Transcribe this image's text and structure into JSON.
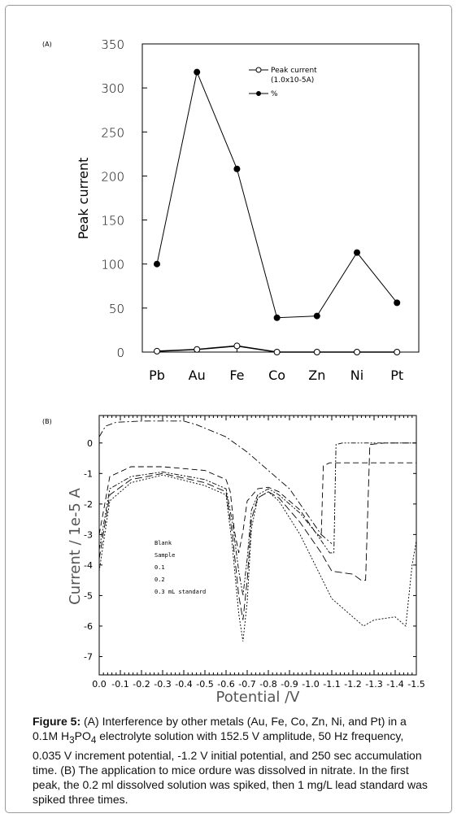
{
  "caption": {
    "label": "Figure 5:",
    "text_a": " (A) Interference by other metals (Au, Fe, Co, Zn, Ni, and Pt) in a 0.1M H",
    "sub1": "3",
    "mid": "PO",
    "sub2": "4",
    "text_b": " electrolyte solution with 152.5 V amplitude, 50 Hz frequency, 0.035 V increment potential, -1.2 V initial potential, and 250 sec accumulation time. (B) The application to mice ordure was dissolved in nitrate. In the first peak, the 0.2 ml dissolved solution was spiked, then 1 mg/L lead standard was spiked three times."
  },
  "chart_data": [
    {
      "panel": "(A)",
      "type": "line",
      "ylabel": "Peak current",
      "xlabel": "",
      "categories": [
        "Pb",
        "Au",
        "Fe",
        "Co",
        "Zn",
        "Ni",
        "Pt"
      ],
      "ylim": [
        0,
        350
      ],
      "yticks": [
        "0",
        "50",
        "100",
        "150",
        "200",
        "250",
        "300",
        "350"
      ],
      "legend_position": "top-right",
      "series": [
        {
          "name": "Peak current (1.0x10-5A)",
          "marker": "open-circle",
          "values": [
            1,
            3,
            7,
            0,
            0,
            0,
            0
          ]
        },
        {
          "name": "%",
          "marker": "filled-circle",
          "values": [
            100,
            318,
            208,
            39,
            41,
            113,
            56
          ]
        }
      ]
    },
    {
      "panel": "(B)",
      "type": "line",
      "xlabel": "Potential /V",
      "ylabel": "Current / 1e-5 A",
      "xlim": [
        0.0,
        -1.5
      ],
      "ylim": [
        -7.6,
        0.9
      ],
      "xticks": [
        "0.0",
        "-0.1",
        "-0.2",
        "-0.3",
        "-0.4",
        "-0.5",
        "-0.6",
        "-0.7",
        "-0.8",
        "-0.9",
        "-1.0",
        "-1.1",
        "-1.2",
        "-1.3",
        "-1.4",
        "-1.5"
      ],
      "yticks": [
        "0",
        "-1",
        "-2",
        "-3",
        "-4",
        "-5",
        "-6",
        "-7"
      ],
      "legend_position": "center-left",
      "series": [
        {
          "name": "Blank",
          "dash": "8,3,2,3",
          "x": [
            0.0,
            -0.03,
            -0.08,
            -0.2,
            -0.4,
            -0.46,
            -0.6,
            -0.7,
            -0.75,
            -0.8,
            -0.9,
            -1.0,
            -1.05,
            -1.1
          ],
          "y": [
            0.2,
            0.55,
            0.68,
            0.72,
            0.72,
            0.6,
            0.2,
            -0.3,
            -0.6,
            -0.9,
            -1.5,
            -2.5,
            -3.0,
            -3.3
          ]
        },
        {
          "name": "Sample",
          "dash": "7,4",
          "x": [
            0.0,
            -0.05,
            -0.15,
            -0.3,
            -0.5,
            -0.6,
            -0.62,
            -0.64,
            -0.66,
            -0.68,
            -0.7,
            -0.75,
            -0.8,
            -0.85,
            -0.95,
            -1.02,
            -1.05,
            -1.06,
            -1.09,
            -1.12,
            -1.2,
            -1.3,
            -1.4,
            -1.5
          ],
          "y": [
            -3.0,
            -1.1,
            -0.78,
            -0.78,
            -0.9,
            -1.2,
            -1.6,
            -2.9,
            -3.6,
            -2.9,
            -1.9,
            -1.5,
            -1.45,
            -1.6,
            -2.2,
            -2.9,
            -3.1,
            -0.75,
            -0.65,
            -0.65,
            -0.65,
            -0.65,
            -0.65,
            -0.65
          ]
        },
        {
          "name": "0.1",
          "dash": "6,2,2,2,2,2",
          "x": [
            0.0,
            -0.05,
            -0.15,
            -0.3,
            -0.5,
            -0.6,
            -0.63,
            -0.66,
            -0.68,
            -0.7,
            -0.72,
            -0.75,
            -0.8,
            -0.85,
            -0.95,
            -1.02,
            -1.06,
            -1.09,
            -1.11,
            -1.12,
            -1.15,
            -1.3,
            -1.5
          ],
          "y": [
            -3.5,
            -1.5,
            -1.1,
            -0.95,
            -1.2,
            -1.5,
            -2.6,
            -4.2,
            -5.0,
            -3.8,
            -2.2,
            -1.7,
            -1.5,
            -1.7,
            -2.3,
            -2.9,
            -3.3,
            -3.6,
            -3.6,
            -0.05,
            -0.0,
            -0.0,
            -0.0
          ]
        },
        {
          "name": "0.2",
          "dash": "9,4",
          "x": [
            0.0,
            -0.05,
            -0.15,
            -0.3,
            -0.5,
            -0.6,
            -0.63,
            -0.66,
            -0.68,
            -0.7,
            -0.72,
            -0.75,
            -0.8,
            -0.85,
            -0.95,
            -1.05,
            -1.1,
            -1.2,
            -1.24,
            -1.26,
            -1.28,
            -1.35,
            -1.5
          ],
          "y": [
            -3.8,
            -1.7,
            -1.2,
            -1.0,
            -1.3,
            -1.6,
            -3.0,
            -5.0,
            -5.8,
            -4.5,
            -2.5,
            -1.8,
            -1.6,
            -1.8,
            -2.6,
            -3.6,
            -4.2,
            -4.3,
            -4.5,
            -4.5,
            -0.05,
            0.0,
            0.0
          ]
        },
        {
          "name": "0.3 mL standard",
          "dash": "2,2",
          "x": [
            0.0,
            -0.05,
            -0.15,
            -0.3,
            -0.5,
            -0.6,
            -0.63,
            -0.66,
            -0.68,
            -0.7,
            -0.72,
            -0.75,
            -0.8,
            -0.85,
            -0.95,
            -1.05,
            -1.1,
            -1.2,
            -1.25,
            -1.3,
            -1.4,
            -1.45,
            -1.48,
            -1.5
          ],
          "y": [
            -4.2,
            -1.9,
            -1.3,
            -1.05,
            -1.4,
            -1.7,
            -3.4,
            -5.6,
            -6.5,
            -5.2,
            -2.8,
            -1.8,
            -1.6,
            -1.9,
            -3.0,
            -4.4,
            -5.1,
            -5.7,
            -6.0,
            -5.8,
            -5.7,
            -6.0,
            -4.0,
            -3.2
          ]
        }
      ]
    }
  ],
  "colors": {
    "axis": "#000000",
    "line": "#000000",
    "frame": "#9a9a9a"
  }
}
